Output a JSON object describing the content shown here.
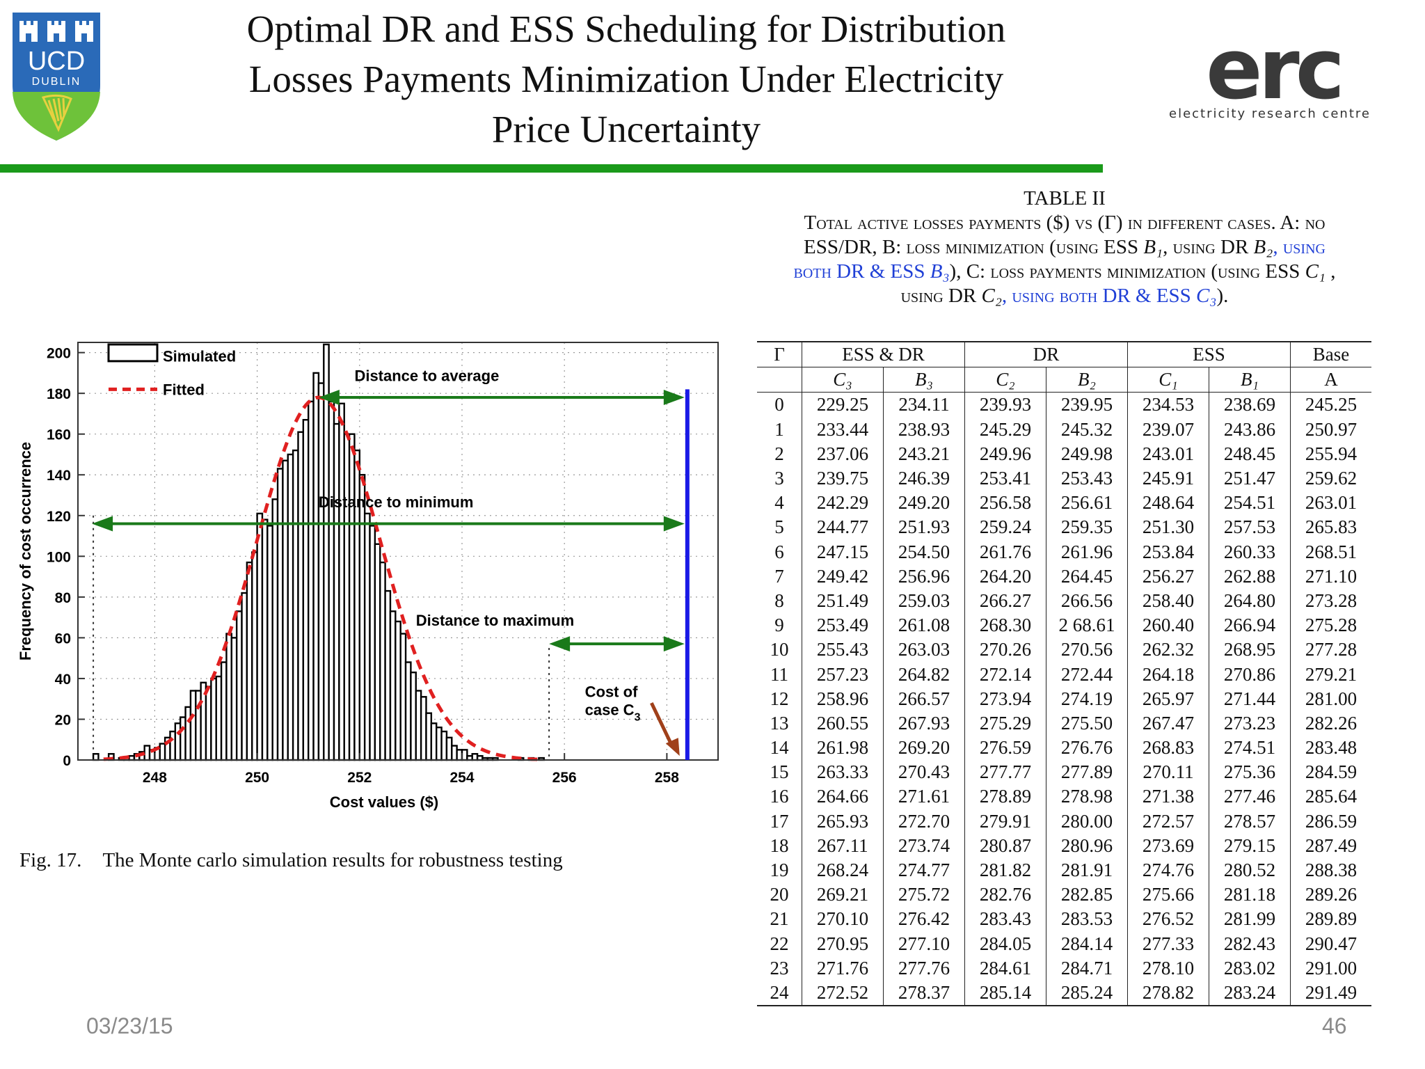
{
  "slide": {
    "title_lines": [
      "Optimal DR and ESS Scheduling for Distribution",
      "Losses Payments Minimization Under Electricity",
      "Price Uncertainty"
    ],
    "date": "03/23/15",
    "page_number": "46"
  },
  "logos": {
    "ucd": {
      "line1": "UCD",
      "line2": "DUBLIN"
    },
    "erc": {
      "wordmark": "erc",
      "tagline": "electricity research centre"
    }
  },
  "colors": {
    "title_rule": "#1a9a1a",
    "caption_blue": "#1f3fd6",
    "arrow_green": "#1a7a1a",
    "cost_line_blue": "#1a1ae6",
    "fit_red": "#e02020",
    "cost_arrow_brown": "#a0401a"
  },
  "table_caption": {
    "heading": "TABLE II",
    "line1": "Total active losses payments ($) vs (Γ) in different cases. A: no",
    "line2_a": "ESS/DR, B: loss minimization (using ESS ",
    "line2_b": "B₁",
    "line2_c": ", using DR ",
    "line2_d": "B₂",
    "line2_e": ", using",
    "line3_a": "both DR & ESS ",
    "line3_b": "B₃",
    "line3_c": "), C: loss payments minimization (using ESS ",
    "line3_d": "C₁",
    "line3_e": " ,",
    "line4_a": "using DR ",
    "line4_b": "C₂",
    "line4_c": ", using both DR & ESS ",
    "line4_d": "C₃",
    "line4_e": ")."
  },
  "table": {
    "group_headers": [
      "Γ",
      "ESS & DR",
      "DR",
      "ESS",
      "Base"
    ],
    "sub_headers": [
      "C₃",
      "B₃",
      "C₂",
      "B₂",
      "C₁",
      "B₁",
      "A"
    ],
    "rows": [
      [
        "0",
        "229.25",
        "234.11",
        "239.93",
        "239.95",
        "234.53",
        "238.69",
        "245.25"
      ],
      [
        "1",
        "233.44",
        "238.93",
        "245.29",
        "245.32",
        "239.07",
        "243.86",
        "250.97"
      ],
      [
        "2",
        "237.06",
        "243.21",
        "249.96",
        "249.98",
        "243.01",
        "248.45",
        "255.94"
      ],
      [
        "3",
        "239.75",
        "246.39",
        "253.41",
        "253.43",
        "245.91",
        "251.47",
        "259.62"
      ],
      [
        "4",
        "242.29",
        "249.20",
        "256.58",
        "256.61",
        "248.64",
        "254.51",
        "263.01"
      ],
      [
        "5",
        "244.77",
        "251.93",
        "259.24",
        "259.35",
        "251.30",
        "257.53",
        "265.83"
      ],
      [
        "6",
        "247.15",
        "254.50",
        "261.76",
        "261.96",
        "253.84",
        "260.33",
        "268.51"
      ],
      [
        "7",
        "249.42",
        "256.96",
        "264.20",
        "264.45",
        "256.27",
        "262.88",
        "271.10"
      ],
      [
        "8",
        "251.49",
        "259.03",
        "266.27",
        "266.56",
        "258.40",
        "264.80",
        "273.28"
      ],
      [
        "9",
        "253.49",
        "261.08",
        "268.30",
        "2 68.61",
        "260.40",
        "266.94",
        "275.28"
      ],
      [
        "10",
        "255.43",
        "263.03",
        "270.26",
        "270.56",
        "262.32",
        "268.95",
        "277.28"
      ],
      [
        "11",
        "257.23",
        "264.82",
        "272.14",
        "272.44",
        "264.18",
        "270.86",
        "279.21"
      ],
      [
        "12",
        "258.96",
        "266.57",
        "273.94",
        "274.19",
        "265.97",
        "271.44",
        "281.00"
      ],
      [
        "13",
        "260.55",
        "267.93",
        "275.29",
        "275.50",
        "267.47",
        "273.23",
        "282.26"
      ],
      [
        "14",
        "261.98",
        "269.20",
        "276.59",
        "276.76",
        "268.83",
        "274.51",
        "283.48"
      ],
      [
        "15",
        "263.33",
        "270.43",
        "277.77",
        "277.89",
        "270.11",
        "275.36",
        "284.59"
      ],
      [
        "16",
        "264.66",
        "271.61",
        "278.89",
        "278.98",
        "271.38",
        "277.46",
        "285.64"
      ],
      [
        "17",
        "265.93",
        "272.70",
        "279.91",
        "280.00",
        "272.57",
        "278.57",
        "286.59"
      ],
      [
        "18",
        "267.11",
        "273.74",
        "280.87",
        "280.96",
        "273.69",
        "279.15",
        "287.49"
      ],
      [
        "19",
        "268.24",
        "274.77",
        "281.82",
        "281.91",
        "274.76",
        "280.52",
        "288.38"
      ],
      [
        "20",
        "269.21",
        "275.72",
        "282.76",
        "282.85",
        "275.66",
        "281.18",
        "289.26"
      ],
      [
        "21",
        "270.10",
        "276.42",
        "283.43",
        "283.53",
        "276.52",
        "281.99",
        "289.89"
      ],
      [
        "22",
        "270.95",
        "277.10",
        "284.05",
        "284.14",
        "277.33",
        "282.43",
        "290.47"
      ],
      [
        "23",
        "271.76",
        "277.76",
        "284.61",
        "284.71",
        "278.10",
        "283.02",
        "291.00"
      ],
      [
        "24",
        "272.52",
        "278.37",
        "285.14",
        "285.24",
        "278.82",
        "283.24",
        "291.49"
      ]
    ]
  },
  "figure": {
    "number": "Fig. 17.",
    "caption": "The Monte carlo simulation results for robustness testing"
  },
  "chart_data": {
    "type": "bar",
    "title": "",
    "xlabel": "Cost values ($)",
    "ylabel": "Frequency of cost occurrence",
    "xlim": [
      246.5,
      259.0
    ],
    "ylim": [
      0,
      205
    ],
    "xticks": [
      248,
      250,
      252,
      254,
      256,
      258
    ],
    "yticks": [
      0,
      20,
      40,
      60,
      80,
      100,
      120,
      140,
      160,
      180,
      200
    ],
    "bin_width": 0.1,
    "bins_start": 246.8,
    "values": [
      3,
      0,
      0,
      3,
      0,
      1,
      1,
      2,
      3,
      4,
      7,
      5,
      6,
      8,
      11,
      14,
      18,
      21,
      26,
      34,
      34,
      38,
      36,
      40,
      41,
      48,
      62,
      60,
      73,
      82,
      97,
      102,
      121,
      118,
      115,
      128,
      143,
      147,
      150,
      152,
      161,
      167,
      176,
      190,
      185,
      204,
      176,
      165,
      175,
      160,
      160,
      152,
      140,
      121,
      115,
      106,
      97,
      83,
      73,
      68,
      62,
      48,
      43,
      34,
      31,
      23,
      18,
      16,
      14,
      11,
      7,
      5,
      5,
      2,
      3,
      2,
      1,
      1,
      1,
      0,
      0,
      0,
      0,
      1,
      0,
      1,
      0,
      1
    ],
    "fitted": {
      "mean": 251.2,
      "sd": 1.2,
      "peak": 178
    },
    "legend": [
      {
        "label": "Simulated",
        "style": "bar"
      },
      {
        "label": "Fitted",
        "style": "dashed-red"
      }
    ],
    "legend_position": "top-left",
    "cost_case_c3": 258.4,
    "annotations": {
      "average": "Distance to average",
      "minimum": "Distance to minimum",
      "maximum": "Distance to maximum",
      "cost_line1": "Cost of",
      "cost_line2": "case C",
      "cost_sub": "3"
    },
    "markers": {
      "average": 251.2,
      "minimum": 246.8,
      "maximum": 255.7
    }
  }
}
